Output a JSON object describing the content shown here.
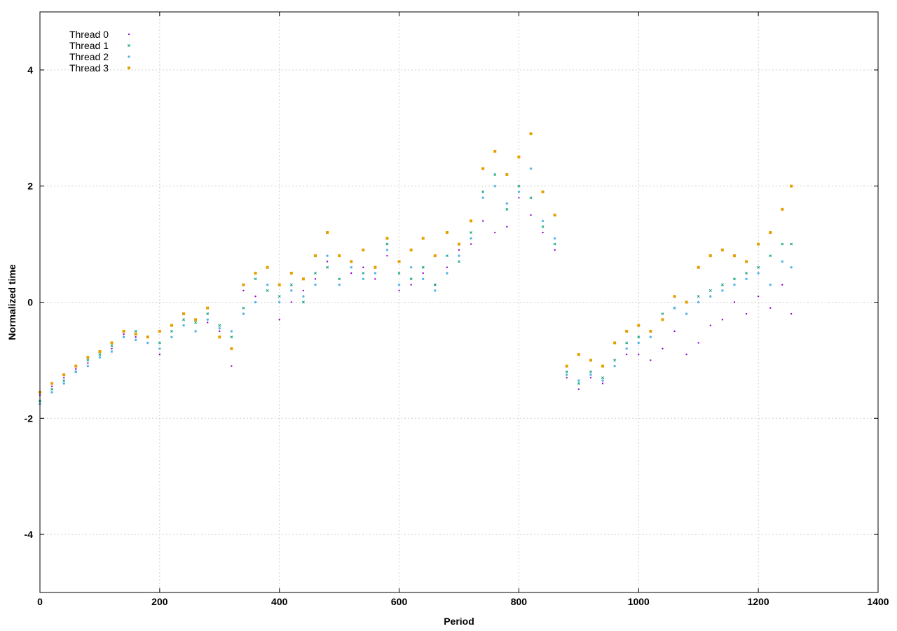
{
  "chart_data": {
    "type": "scatter",
    "title": "",
    "xlabel": "Period",
    "ylabel": "Normalized time",
    "xlim": [
      0,
      1400
    ],
    "ylim": [
      -5,
      5
    ],
    "x_ticks": [
      0,
      200,
      400,
      600,
      800,
      1000,
      1200,
      1400
    ],
    "y_ticks": [
      -4,
      -2,
      0,
      2,
      4
    ],
    "x_tick_labels": [
      "0",
      "200",
      "400",
      "600",
      "800",
      "1000",
      "1200",
      "1400"
    ],
    "y_tick_labels": [
      "-4",
      "-2",
      "0",
      "2",
      "4"
    ],
    "grid": true,
    "legend_position": "top-left",
    "series": [
      {
        "name": "Thread 0",
        "color": "#9400d3",
        "marker": "dot",
        "x": [
          0,
          20,
          40,
          60,
          80,
          100,
          120,
          140,
          160,
          180,
          200,
          220,
          240,
          260,
          280,
          300,
          320,
          340,
          360,
          380,
          400,
          420,
          440,
          460,
          480,
          500,
          520,
          540,
          560,
          580,
          600,
          620,
          640,
          660,
          680,
          700,
          720,
          740,
          760,
          780,
          800,
          820,
          840,
          860,
          880,
          900,
          920,
          940,
          960,
          980,
          1000,
          1020,
          1040,
          1060,
          1080,
          1100,
          1120,
          1140,
          1160,
          1180,
          1200,
          1220,
          1240,
          1255
        ],
        "y": [
          -1.6,
          -1.45,
          -1.3,
          -1.15,
          -1.05,
          -0.95,
          -0.8,
          -0.55,
          -0.6,
          -0.7,
          -0.9,
          -0.6,
          -0.4,
          -0.3,
          -0.35,
          -0.5,
          -1.1,
          0.2,
          0.1,
          0.3,
          -0.3,
          0.0,
          0.2,
          0.4,
          0.7,
          0.3,
          0.5,
          0.6,
          0.4,
          0.8,
          0.2,
          0.3,
          0.5,
          0.3,
          0.6,
          0.9,
          1.0,
          1.4,
          1.2,
          1.3,
          1.8,
          1.5,
          1.2,
          0.9,
          -1.3,
          -1.5,
          -1.3,
          -1.4,
          -1.1,
          -0.9,
          -0.9,
          -1.0,
          -0.8,
          -0.5,
          -0.9,
          -0.7,
          -0.4,
          -0.3,
          0.0,
          -0.2,
          0.1,
          -0.1,
          0.3,
          -0.2
        ]
      },
      {
        "name": "Thread 1",
        "color": "#009e73",
        "marker": "x",
        "x": [
          0,
          20,
          40,
          60,
          80,
          100,
          120,
          140,
          160,
          180,
          200,
          220,
          240,
          260,
          280,
          300,
          320,
          340,
          360,
          380,
          400,
          420,
          440,
          460,
          480,
          500,
          520,
          540,
          560,
          580,
          600,
          620,
          640,
          660,
          680,
          700,
          720,
          740,
          760,
          780,
          800,
          820,
          840,
          860,
          880,
          900,
          920,
          940,
          960,
          980,
          1000,
          1020,
          1040,
          1060,
          1080,
          1100,
          1120,
          1140,
          1160,
          1180,
          1200,
          1220,
          1240,
          1255
        ],
        "y": [
          -1.7,
          -1.5,
          -1.35,
          -1.2,
          -1.0,
          -0.9,
          -0.75,
          -0.5,
          -0.5,
          -0.6,
          -0.7,
          -0.5,
          -0.3,
          -0.35,
          -0.2,
          -0.4,
          -0.6,
          -0.1,
          0.4,
          0.2,
          0.1,
          0.3,
          0.0,
          0.5,
          0.6,
          0.4,
          0.7,
          0.5,
          0.6,
          1.0,
          0.5,
          0.4,
          0.6,
          0.3,
          0.8,
          0.7,
          1.2,
          1.9,
          2.2,
          1.6,
          2.0,
          1.8,
          1.3,
          1.0,
          -1.2,
          -1.4,
          -1.2,
          -1.3,
          -1.0,
          -0.7,
          -0.6,
          -0.5,
          -0.2,
          -0.1,
          0.0,
          0.1,
          0.2,
          0.3,
          0.4,
          0.5,
          0.6,
          0.8,
          1.0,
          1.0
        ]
      },
      {
        "name": "Thread 2",
        "color": "#56b4e9",
        "marker": "star",
        "x": [
          0,
          20,
          40,
          60,
          80,
          100,
          120,
          140,
          160,
          180,
          200,
          220,
          240,
          260,
          280,
          300,
          320,
          340,
          360,
          380,
          400,
          420,
          440,
          460,
          480,
          500,
          520,
          540,
          560,
          580,
          600,
          620,
          640,
          660,
          680,
          700,
          720,
          740,
          760,
          780,
          800,
          820,
          840,
          860,
          880,
          900,
          920,
          940,
          960,
          980,
          1000,
          1020,
          1040,
          1060,
          1080,
          1100,
          1120,
          1140,
          1160,
          1180,
          1200,
          1220,
          1240,
          1255
        ],
        "y": [
          -1.75,
          -1.55,
          -1.4,
          -1.2,
          -1.1,
          -0.95,
          -0.85,
          -0.6,
          -0.65,
          -0.7,
          -0.8,
          -0.6,
          -0.4,
          -0.5,
          -0.3,
          -0.45,
          -0.5,
          -0.2,
          0.0,
          0.3,
          0.0,
          0.2,
          0.1,
          0.3,
          0.8,
          0.3,
          0.6,
          0.4,
          0.5,
          0.9,
          0.3,
          0.6,
          0.4,
          0.2,
          0.5,
          0.8,
          1.1,
          1.8,
          2.0,
          1.7,
          1.9,
          2.3,
          1.4,
          1.1,
          -1.25,
          -1.35,
          -1.25,
          -1.35,
          -1.1,
          -0.8,
          -0.7,
          -0.6,
          -0.3,
          -0.1,
          -0.2,
          0.0,
          0.1,
          0.2,
          0.3,
          0.4,
          0.5,
          0.3,
          0.7,
          0.6
        ]
      },
      {
        "name": "Thread 3",
        "color": "#e69f00",
        "marker": "square",
        "x": [
          0,
          20,
          40,
          60,
          80,
          100,
          120,
          140,
          160,
          180,
          200,
          220,
          240,
          260,
          280,
          300,
          320,
          340,
          360,
          380,
          400,
          420,
          440,
          460,
          480,
          500,
          520,
          540,
          560,
          580,
          600,
          620,
          640,
          660,
          680,
          700,
          720,
          740,
          760,
          780,
          800,
          820,
          840,
          860,
          880,
          900,
          920,
          940,
          960,
          980,
          1000,
          1020,
          1040,
          1060,
          1080,
          1100,
          1120,
          1140,
          1160,
          1180,
          1200,
          1220,
          1240,
          1255
        ],
        "y": [
          -1.55,
          -1.4,
          -1.25,
          -1.1,
          -0.95,
          -0.85,
          -0.7,
          -0.5,
          -0.55,
          -0.6,
          -0.5,
          -0.4,
          -0.2,
          -0.3,
          -0.1,
          -0.6,
          -0.8,
          0.3,
          0.5,
          0.6,
          0.3,
          0.5,
          0.4,
          0.8,
          1.2,
          0.8,
          0.7,
          0.9,
          0.6,
          1.1,
          0.7,
          0.9,
          1.1,
          0.8,
          1.2,
          1.0,
          1.4,
          2.3,
          2.6,
          2.2,
          2.5,
          2.9,
          1.9,
          1.5,
          -1.1,
          -0.9,
          -1.0,
          -1.1,
          -0.7,
          -0.5,
          -0.4,
          -0.5,
          -0.3,
          0.1,
          0.0,
          0.6,
          0.8,
          0.9,
          0.8,
          0.7,
          1.0,
          1.2,
          1.6,
          2.0
        ]
      }
    ]
  }
}
